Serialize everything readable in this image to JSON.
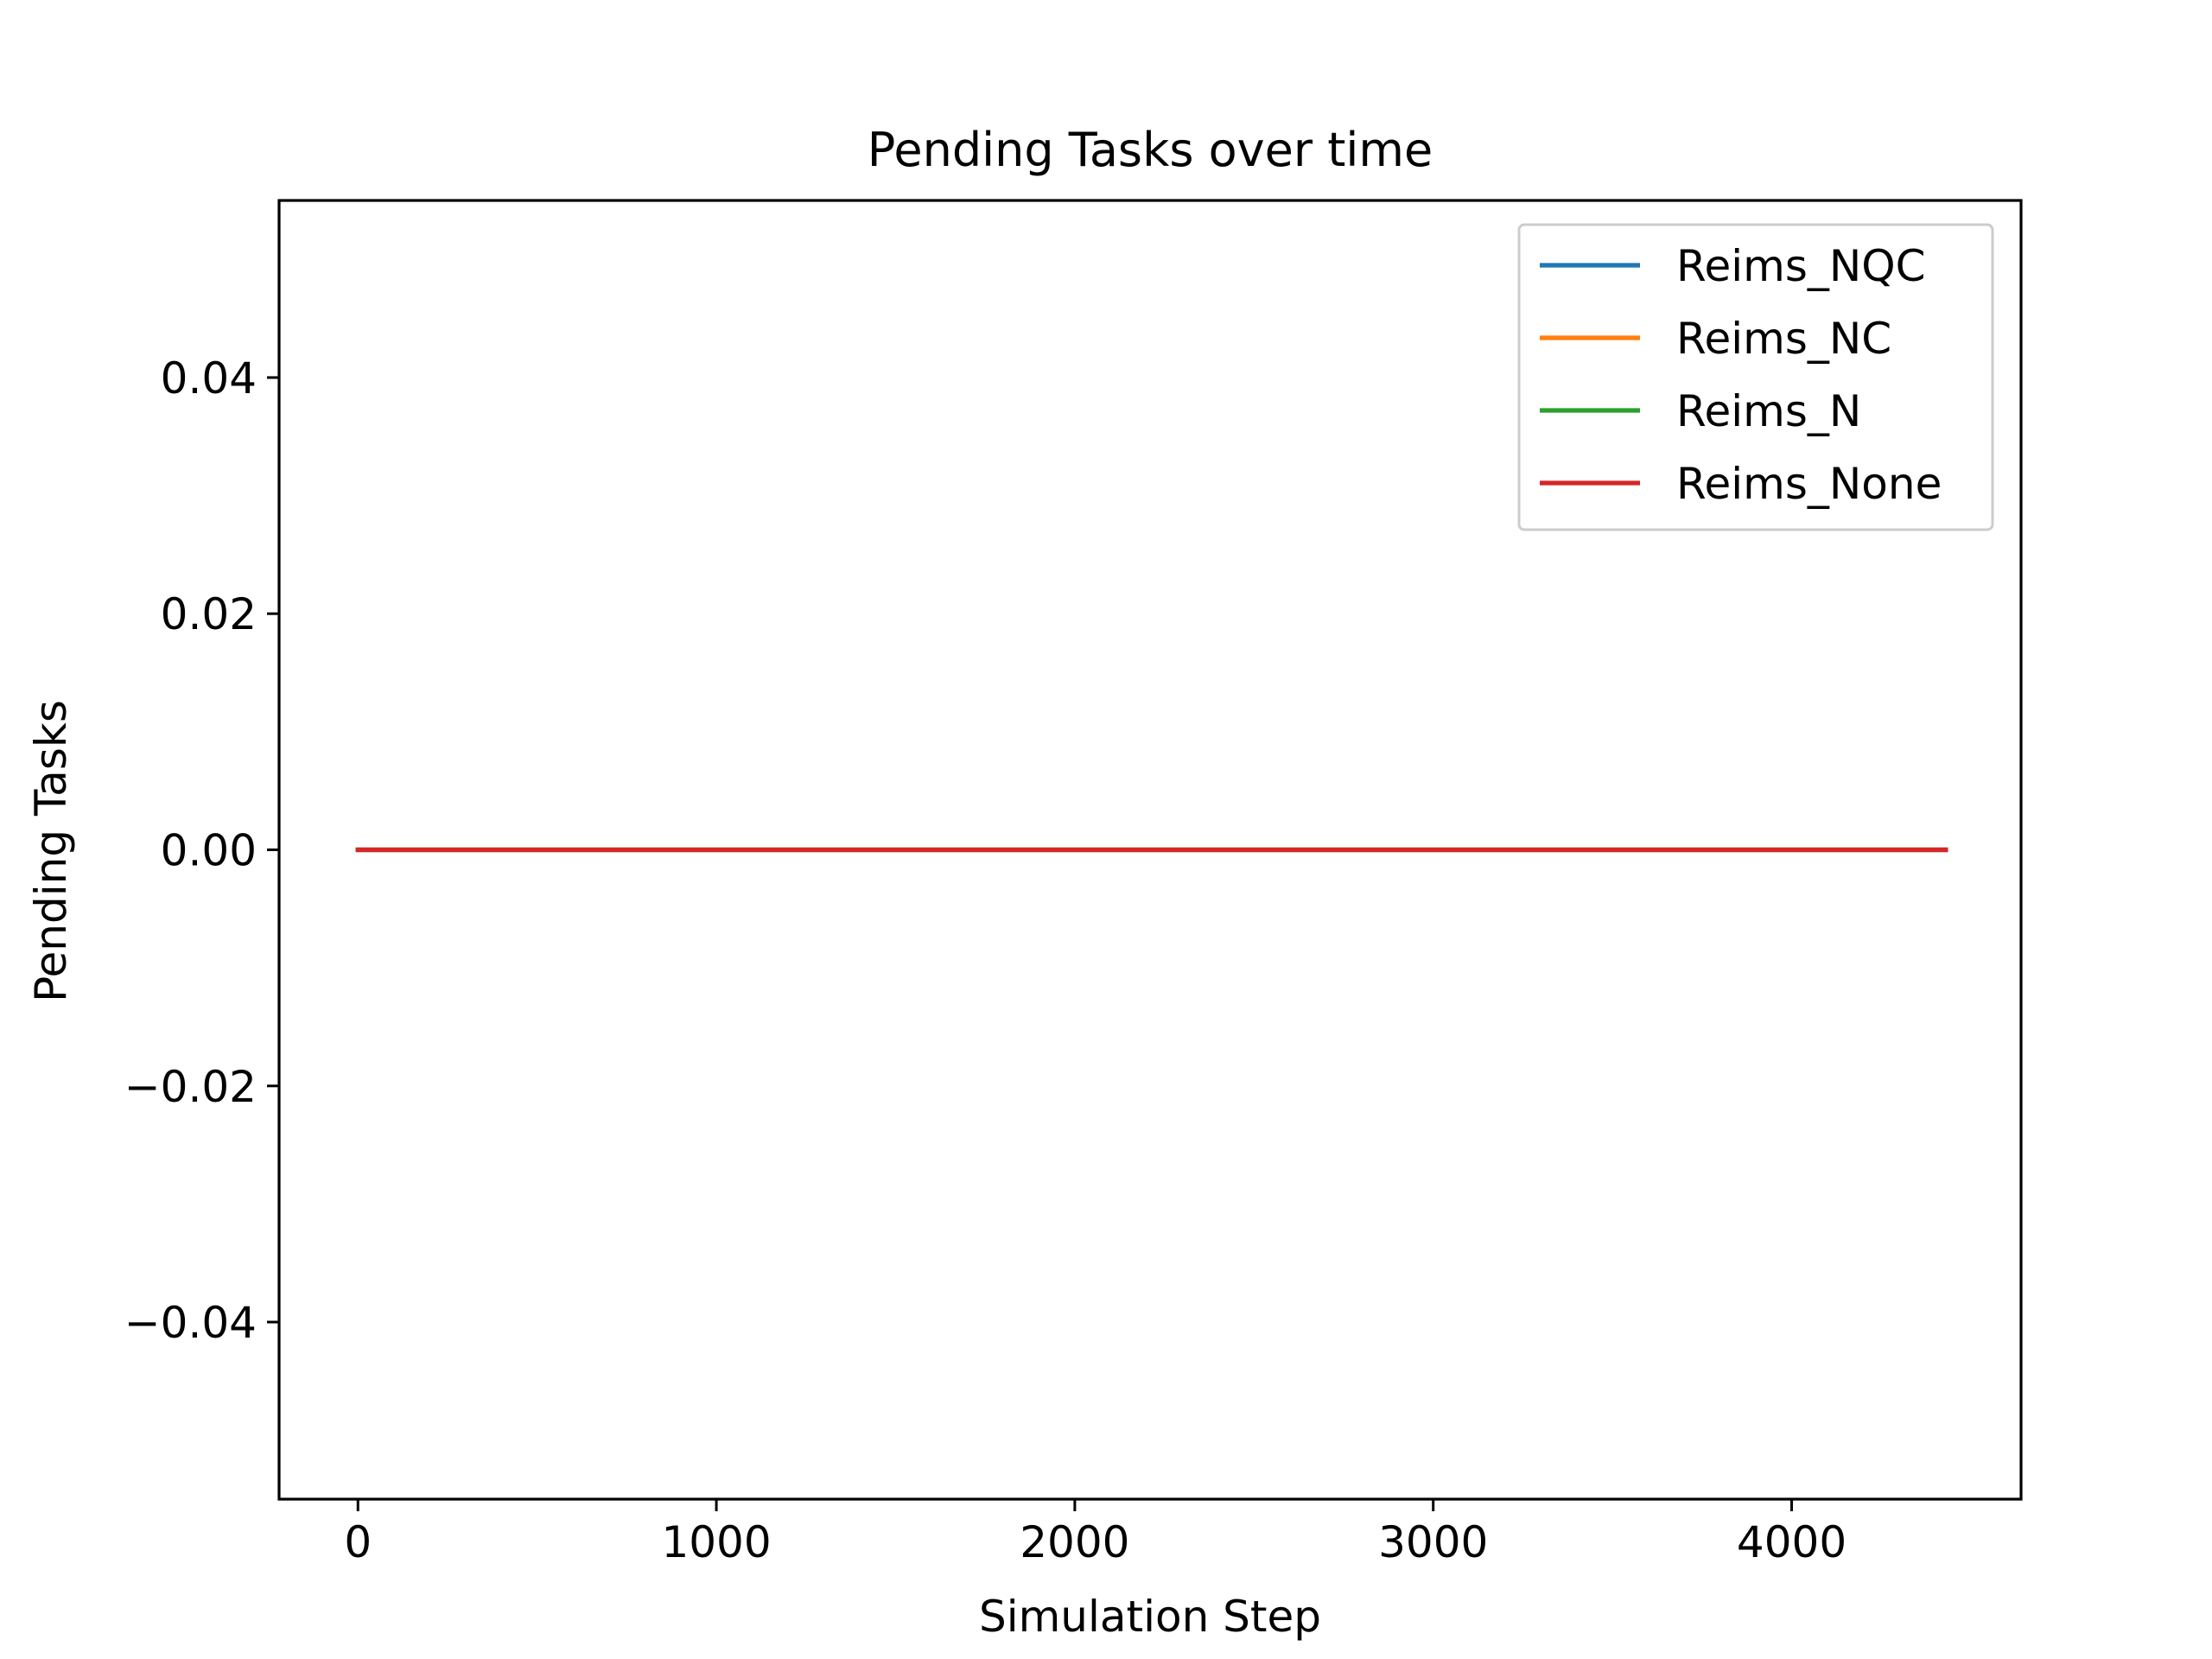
{
  "chart_data": {
    "type": "line",
    "title": "Pending Tasks over time",
    "xlabel": "Simulation Step",
    "ylabel": "Pending Tasks",
    "xlim": [
      -220,
      4640
    ],
    "ylim": [
      -0.055,
      0.055
    ],
    "xticks": [
      0,
      1000,
      2000,
      3000,
      4000
    ],
    "xtick_labels": [
      "0",
      "1000",
      "2000",
      "3000",
      "4000"
    ],
    "yticks": [
      0.04,
      0.02,
      0.0,
      -0.02,
      -0.04
    ],
    "ytick_labels": [
      "0.04",
      "0.02",
      "0.00",
      "−0.02",
      "−0.04"
    ],
    "grid": false,
    "legend_position": "top-right",
    "x": [
      0,
      4430
    ],
    "series": [
      {
        "name": "Reims_NQC",
        "color": "#1f77b4",
        "values": [
          0,
          0
        ]
      },
      {
        "name": "Reims_NC",
        "color": "#ff7f0e",
        "values": [
          0,
          0
        ]
      },
      {
        "name": "Reims_N",
        "color": "#2ca02c",
        "values": [
          0,
          0
        ]
      },
      {
        "name": "Reims_None",
        "color": "#d62728",
        "values": [
          0,
          0
        ]
      }
    ]
  }
}
